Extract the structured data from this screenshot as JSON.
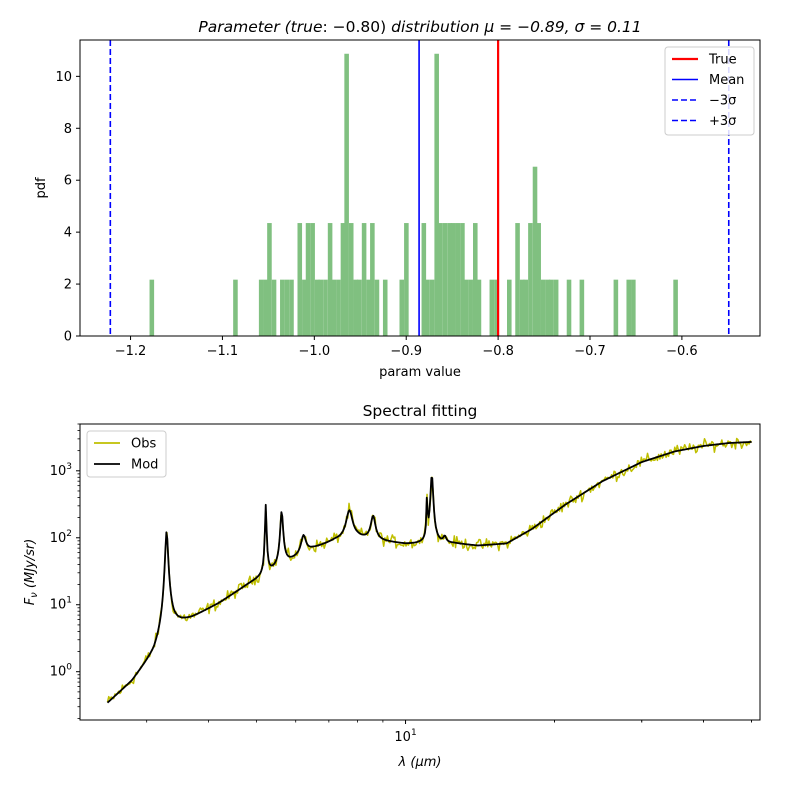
{
  "chart_data": [
    {
      "type": "bar",
      "title": "Parameter (true: −0.80) distribution μ = −0.89,  σ = 0.11",
      "title_parts": {
        "a": "Parameter (true",
        "b": ": −0.80)",
        "c": " distribution μ = −0.89,  σ = 0.11"
      },
      "xlabel": "param value",
      "ylabel": "pdf",
      "xlim": [
        -1.255,
        -0.515
      ],
      "ylim": [
        0,
        11.4
      ],
      "xticks": [
        -1.2,
        -1.1,
        -1.0,
        -0.9,
        -0.8,
        -0.7,
        -0.6
      ],
      "xtick_labels": [
        "−1.2",
        "−1.1",
        "−1.0",
        "−0.9",
        "−0.8",
        "−0.7",
        "−0.6"
      ],
      "yticks": [
        0,
        2,
        4,
        6,
        8,
        10
      ],
      "bin_width": 0.00465,
      "bar_color": "#80c080",
      "bins": [
        [
          -1.177,
          2.17
        ],
        [
          -1.086,
          2.17
        ],
        [
          -1.058,
          2.17
        ],
        [
          -1.053,
          2.17
        ],
        [
          -1.049,
          4.35
        ],
        [
          -1.044,
          2.17
        ],
        [
          -1.035,
          2.17
        ],
        [
          -1.03,
          2.17
        ],
        [
          -1.025,
          2.17
        ],
        [
          -1.016,
          4.35
        ],
        [
          -1.011,
          2.17
        ],
        [
          -1.007,
          4.35
        ],
        [
          -1.002,
          4.35
        ],
        [
          -0.997,
          2.17
        ],
        [
          -0.993,
          2.17
        ],
        [
          -0.988,
          2.17
        ],
        [
          -0.983,
          4.35
        ],
        [
          -0.979,
          2.17
        ],
        [
          -0.974,
          2.17
        ],
        [
          -0.969,
          4.35
        ],
        [
          -0.965,
          10.87
        ],
        [
          -0.96,
          4.35
        ],
        [
          -0.955,
          2.17
        ],
        [
          -0.951,
          2.17
        ],
        [
          -0.946,
          4.35
        ],
        [
          -0.941,
          2.17
        ],
        [
          -0.937,
          4.35
        ],
        [
          -0.932,
          2.17
        ],
        [
          -0.923,
          2.17
        ],
        [
          -0.905,
          2.17
        ],
        [
          -0.9,
          4.35
        ],
        [
          -0.881,
          4.35
        ],
        [
          -0.877,
          2.17
        ],
        [
          -0.872,
          2.17
        ],
        [
          -0.867,
          10.87
        ],
        [
          -0.863,
          4.35
        ],
        [
          -0.858,
          4.35
        ],
        [
          -0.853,
          4.35
        ],
        [
          -0.849,
          4.35
        ],
        [
          -0.844,
          4.35
        ],
        [
          -0.839,
          4.35
        ],
        [
          -0.835,
          2.17
        ],
        [
          -0.83,
          2.17
        ],
        [
          -0.825,
          4.35
        ],
        [
          -0.821,
          2.17
        ],
        [
          -0.807,
          2.17
        ],
        [
          -0.802,
          2.17
        ],
        [
          -0.788,
          2.17
        ],
        [
          -0.779,
          4.35
        ],
        [
          -0.774,
          2.17
        ],
        [
          -0.77,
          2.17
        ],
        [
          -0.765,
          4.35
        ],
        [
          -0.76,
          6.52
        ],
        [
          -0.756,
          4.35
        ],
        [
          -0.751,
          2.17
        ],
        [
          -0.746,
          2.17
        ],
        [
          -0.742,
          2.17
        ],
        [
          -0.737,
          2.17
        ],
        [
          -0.723,
          2.17
        ],
        [
          -0.709,
          2.17
        ],
        [
          -0.672,
          2.17
        ],
        [
          -0.658,
          2.17
        ],
        [
          -0.653,
          2.17
        ],
        [
          -0.607,
          2.17
        ]
      ],
      "vlines": [
        {
          "name": "True",
          "x": -0.8,
          "color": "#ff0000",
          "style": "solid"
        },
        {
          "name": "Mean",
          "x": -0.886,
          "color": "#0000ff",
          "style": "solid"
        },
        {
          "name": "−3σ",
          "x": -1.222,
          "color": "#0000ff",
          "style": "dashed"
        },
        {
          "name": "+3σ",
          "x": -0.549,
          "color": "#0000ff",
          "style": "dashed"
        }
      ],
      "legend": {
        "placement": "top-right",
        "entries": [
          {
            "label": "True",
            "color": "#ff0000",
            "style": "solid"
          },
          {
            "label": "Mean",
            "color": "#0000ff",
            "style": "solid"
          },
          {
            "label": "−3σ",
            "color": "#0000ff",
            "style": "dashed"
          },
          {
            "label": "+3σ",
            "color": "#0000ff",
            "style": "dashed"
          }
        ]
      }
    },
    {
      "type": "line",
      "title": "Spectral fitting",
      "xlabel": "λ (μm)",
      "xlabel_parts": {
        "sym": "λ",
        "unit": " (μm)"
      },
      "ylabel": "Fν (MJy/sr)",
      "ylabel_parts": {
        "sym": "F",
        "sub": "ν",
        "unit": " (MJy/sr)"
      },
      "x_scale": "log",
      "y_scale": "log",
      "xlim": [
        2.2,
        52.0
      ],
      "ylim": [
        0.19,
        5000
      ],
      "xtick_major": {
        "value": 10,
        "base": "10",
        "exp": "1"
      },
      "yticks_major": [
        {
          "value": 1,
          "base": "10",
          "exp": "0"
        },
        {
          "value": 10,
          "base": "10",
          "exp": "1"
        },
        {
          "value": 100,
          "base": "10",
          "exp": "2"
        },
        {
          "value": 1000,
          "base": "10",
          "exp": "3"
        }
      ],
      "continuum": [
        [
          2.5,
          0.34
        ],
        [
          2.8,
          0.72
        ],
        [
          3.1,
          1.9
        ],
        [
          3.22,
          3.4
        ],
        [
          3.3,
          5.0
        ],
        [
          3.4,
          4.9
        ],
        [
          3.7,
          6.3
        ],
        [
          4.2,
          10.5
        ],
        [
          4.8,
          20.0
        ],
        [
          5.3,
          30.0
        ],
        [
          5.7,
          40.0
        ],
        [
          6.5,
          68.0
        ],
        [
          7.2,
          90.0
        ],
        [
          8.0,
          98.0
        ],
        [
          9.0,
          88.0
        ],
        [
          10.0,
          80.0
        ],
        [
          11.0,
          80.0
        ],
        [
          12.5,
          82.0
        ],
        [
          14.0,
          76.0
        ],
        [
          16.0,
          82.0
        ],
        [
          18.0,
          135.0
        ],
        [
          21.0,
          310.0
        ],
        [
          25.0,
          700.0
        ],
        [
          30.0,
          1350.0
        ],
        [
          35.0,
          1950.0
        ],
        [
          40.0,
          2350.0
        ],
        [
          45.0,
          2600.0
        ],
        [
          50.0,
          2700.0
        ]
      ],
      "features": [
        {
          "center": 3.29,
          "width": 0.012,
          "amp": 25.0
        },
        {
          "center": 5.22,
          "width": 0.006,
          "amp": 10.0
        },
        {
          "center": 5.62,
          "width": 0.012,
          "amp": 5.6
        },
        {
          "center": 6.22,
          "width": 0.024,
          "amp": 0.9
        },
        {
          "center": 7.7,
          "width": 0.03,
          "amp": 1.7
        },
        {
          "center": 8.6,
          "width": 0.022,
          "amp": 1.3
        },
        {
          "center": 11.05,
          "width": 0.004,
          "amp": 4.5
        },
        {
          "center": 11.3,
          "width": 0.011,
          "amp": 10.0
        },
        {
          "center": 12.0,
          "width": 0.015,
          "amp": 0.25
        }
      ],
      "series": [
        {
          "name": "Obs",
          "color": "#bfbf00",
          "noise": 0.2,
          "lambda_range": [
            2.5,
            50.0
          ]
        },
        {
          "name": "Mod",
          "color": "#000000",
          "noise": 0,
          "lambda_range": [
            2.5,
            50.0
          ]
        }
      ],
      "legend": {
        "placement": "top-left",
        "entries": [
          {
            "label": "Obs",
            "color": "#bfbf00"
          },
          {
            "label": "Mod",
            "color": "#000000"
          }
        ]
      }
    }
  ]
}
